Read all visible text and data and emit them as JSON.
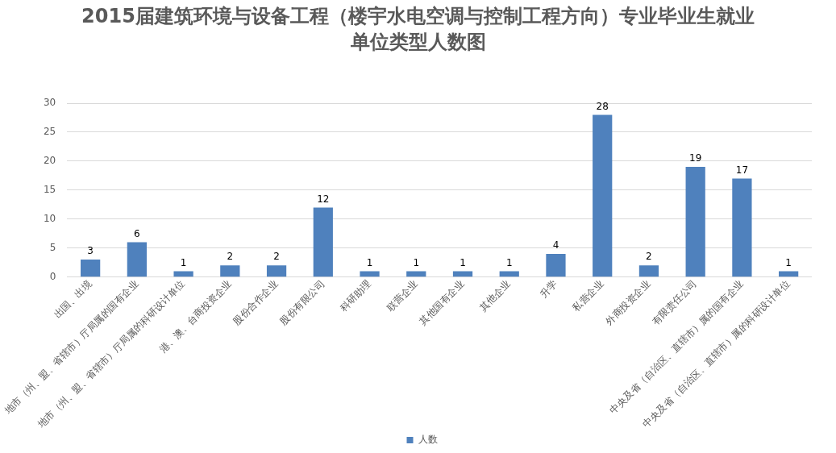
{
  "chart_data": {
    "type": "bar",
    "title": "2015届建筑环境与设备工程（楼宇水电空调与控制工程方向）专业毕业生就业单位类型人数图",
    "categories": [
      "出国、出境",
      "地市（州、盟、省辖市）厅局属的国有企业",
      "地市（州、盟、省辖市）厅局属的科研设计单位",
      "港、澳、台商投资企业",
      "股份合作企业",
      "股份有限公司",
      "科研助理",
      "联营企业",
      "其他国有企业",
      "其他企业",
      "升学",
      "私营企业",
      "外商投资企业",
      "有限责任公司",
      "中央及省（自治区、直辖市）属的国有企业",
      "中央及省（自治区、直辖市）属的科研设计单位"
    ],
    "series": [
      {
        "name": "人数",
        "color": "#4f81bd",
        "values": [
          3,
          6,
          1,
          2,
          2,
          12,
          1,
          1,
          1,
          1,
          4,
          28,
          2,
          19,
          17,
          1
        ]
      }
    ],
    "ylim": [
      0,
      30
    ],
    "yticks": [
      0,
      5,
      10,
      15,
      20,
      25,
      30
    ],
    "grid": "y",
    "legend": "bottom",
    "data_labels": true
  }
}
